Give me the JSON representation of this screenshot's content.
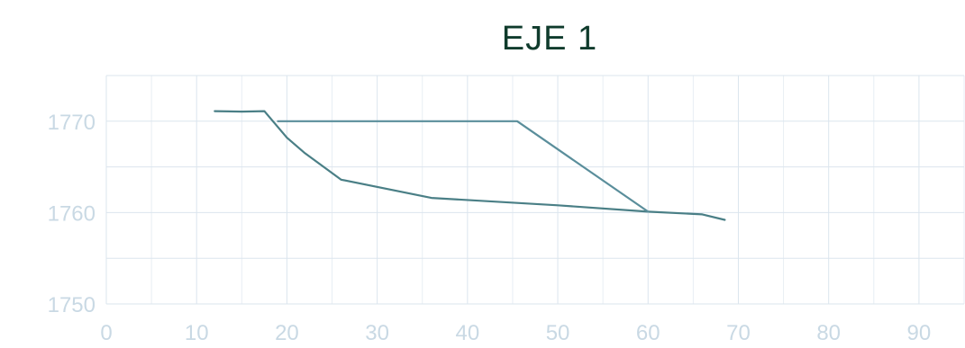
{
  "chart_data": {
    "type": "line",
    "title": "EJE 1",
    "xlabel": "",
    "ylabel": "",
    "xlim": [
      0,
      95
    ],
    "ylim": [
      1750,
      1775
    ],
    "grid": true,
    "x_ticks": [
      0,
      10,
      20,
      30,
      40,
      50,
      60,
      70,
      80,
      90
    ],
    "y_ticks": [
      1750,
      1760,
      1770
    ],
    "series": [
      {
        "color": "#4a7f86",
        "x": [
          12,
          15,
          17.5,
          20,
          22,
          26,
          36,
          50,
          60,
          66,
          68.5
        ],
        "y": [
          1771.1,
          1771.05,
          1771.1,
          1768.2,
          1766.5,
          1763.6,
          1761.6,
          1760.8,
          1760.1,
          1759.8,
          1759.2
        ]
      },
      {
        "color": "#5a8e9b",
        "x": [
          19,
          45.5,
          60
        ],
        "y": [
          1770,
          1770,
          1760.1
        ]
      }
    ]
  }
}
